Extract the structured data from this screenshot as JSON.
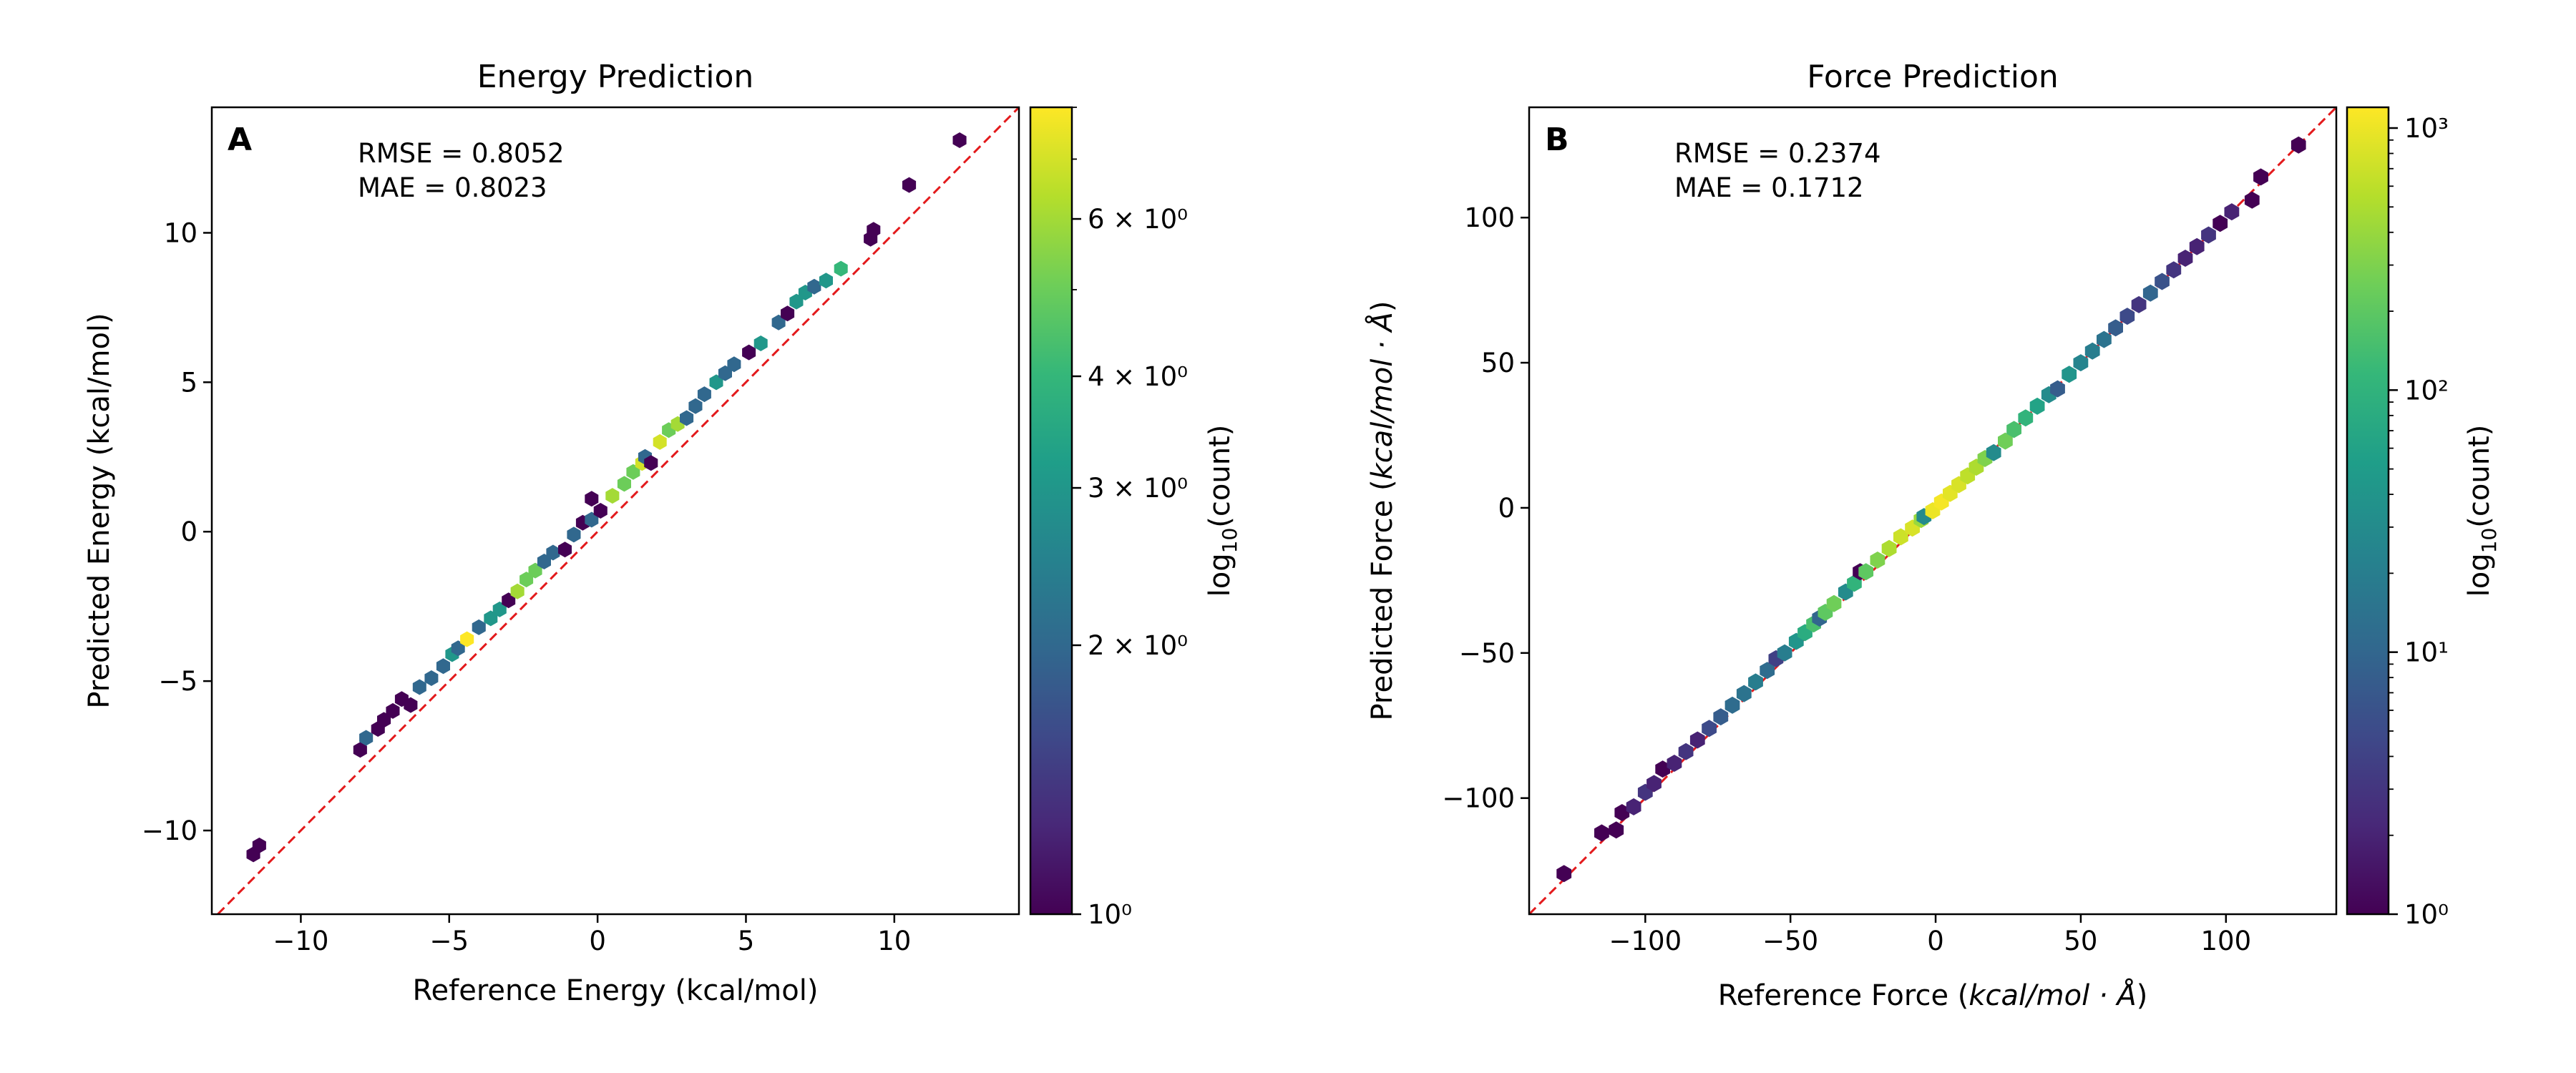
{
  "colors": {
    "diagonal": "#e31a1c",
    "colormap": [
      "#440154",
      "#482878",
      "#3e4989",
      "#31688e",
      "#26828e",
      "#1f9e89",
      "#35b779",
      "#6ece58",
      "#b5de2b",
      "#fde725"
    ]
  },
  "chart_data": [
    {
      "type": "hexbin",
      "panel_label": "A",
      "title": "Energy Prediction",
      "xlabel": "Reference Energy (kcal/mol)",
      "ylabel": "Predicted Energy (kcal/mol)",
      "xlim": [
        -13,
        14.2
      ],
      "ylim": [
        -12.8,
        14.2
      ],
      "xticks": [
        -10,
        -5,
        0,
        5,
        10
      ],
      "yticks": [
        -10,
        -5,
        0,
        5,
        10
      ],
      "xtick_labels": [
        "−10",
        "−5",
        "0",
        "5",
        "10"
      ],
      "ytick_labels": [
        "−10",
        "−5",
        "0",
        "5",
        "10"
      ],
      "annotation": [
        "RMSE = 0.8052",
        "MAE = 0.8023"
      ],
      "colorbar": {
        "label": "log10(count)",
        "scale": "log",
        "range": [
          1,
          8
        ],
        "ticks": [
          1,
          2,
          3,
          4,
          6
        ],
        "tick_labels": [
          "10⁰",
          "2 × 10⁰",
          "3 × 10⁰",
          "4 × 10⁰",
          "6 × 10⁰"
        ]
      },
      "points": [
        [
          -11.6,
          -10.8,
          1
        ],
        [
          -11.4,
          -10.5,
          1
        ],
        [
          -8.0,
          -7.3,
          1
        ],
        [
          -7.8,
          -6.9,
          2
        ],
        [
          -7.4,
          -6.6,
          1
        ],
        [
          -7.2,
          -6.3,
          1
        ],
        [
          -6.9,
          -6.0,
          1
        ],
        [
          -6.6,
          -5.6,
          1
        ],
        [
          -6.3,
          -5.8,
          1
        ],
        [
          -6.0,
          -5.2,
          2
        ],
        [
          -5.6,
          -4.9,
          2
        ],
        [
          -5.2,
          -4.5,
          2
        ],
        [
          -4.9,
          -4.1,
          3
        ],
        [
          -4.7,
          -3.9,
          2
        ],
        [
          -4.4,
          -3.6,
          8
        ],
        [
          -4.0,
          -3.2,
          2
        ],
        [
          -3.6,
          -2.9,
          3
        ],
        [
          -3.3,
          -2.6,
          3
        ],
        [
          -3.0,
          -2.3,
          1
        ],
        [
          -2.7,
          -2.0,
          6
        ],
        [
          -2.4,
          -1.6,
          5
        ],
        [
          -2.1,
          -1.3,
          5
        ],
        [
          -1.8,
          -1.0,
          2
        ],
        [
          -1.5,
          -0.7,
          2
        ],
        [
          -1.1,
          -0.6,
          1
        ],
        [
          -0.8,
          -0.1,
          2
        ],
        [
          -0.5,
          0.3,
          1
        ],
        [
          -0.2,
          0.4,
          2
        ],
        [
          -0.2,
          1.1,
          1
        ],
        [
          0.1,
          0.7,
          1
        ],
        [
          0.5,
          1.2,
          6
        ],
        [
          0.9,
          1.6,
          5
        ],
        [
          1.2,
          2.0,
          5
        ],
        [
          1.5,
          2.3,
          7
        ],
        [
          1.6,
          2.5,
          2
        ],
        [
          1.8,
          2.3,
          1
        ],
        [
          2.1,
          3.0,
          7
        ],
        [
          2.4,
          3.4,
          5
        ],
        [
          2.7,
          3.6,
          6
        ],
        [
          3.0,
          3.8,
          2
        ],
        [
          3.3,
          4.2,
          2
        ],
        [
          3.6,
          4.6,
          2
        ],
        [
          4.0,
          5.0,
          3
        ],
        [
          4.3,
          5.3,
          2
        ],
        [
          4.6,
          5.6,
          2
        ],
        [
          5.1,
          6.0,
          1
        ],
        [
          5.5,
          6.3,
          3
        ],
        [
          6.1,
          7.0,
          2
        ],
        [
          6.4,
          7.3,
          1
        ],
        [
          6.7,
          7.7,
          3
        ],
        [
          7.0,
          8.0,
          3
        ],
        [
          7.3,
          8.2,
          2
        ],
        [
          7.7,
          8.4,
          3
        ],
        [
          8.2,
          8.8,
          4
        ],
        [
          9.2,
          9.8,
          1
        ],
        [
          9.3,
          10.1,
          1
        ],
        [
          10.5,
          11.6,
          1
        ],
        [
          12.2,
          13.1,
          1
        ]
      ]
    },
    {
      "type": "hexbin",
      "panel_label": "B",
      "title": "Force Prediction",
      "xlabel_prefix": "Reference Force (",
      "xlabel_unit": "kcal/mol · Å",
      "xlabel_suffix": ")",
      "ylabel_prefix": "Predicted Force (",
      "ylabel_unit": "kcal/mol · Å",
      "ylabel_suffix": ")",
      "xlim": [
        -140,
        138
      ],
      "ylim": [
        -140,
        138
      ],
      "xticks": [
        -100,
        -50,
        0,
        50,
        100
      ],
      "yticks": [
        -100,
        -50,
        0,
        50,
        100
      ],
      "xtick_labels": [
        "−100",
        "−50",
        "0",
        "50",
        "100"
      ],
      "ytick_labels": [
        "−100",
        "−50",
        "0",
        "50",
        "100"
      ],
      "annotation": [
        "RMSE = 0.2374",
        "MAE = 0.1712"
      ],
      "colorbar": {
        "label": "log10(count)",
        "scale": "log",
        "range": [
          1,
          1200
        ],
        "ticks": [
          1,
          10,
          100,
          1000
        ],
        "tick_labels": [
          "10⁰",
          "10¹",
          "10²",
          "10³"
        ]
      },
      "points": [
        [
          -128,
          -126,
          1
        ],
        [
          -115,
          -112,
          1
        ],
        [
          -110,
          -111,
          1
        ],
        [
          -108,
          -105,
          1
        ],
        [
          -104,
          -103,
          2
        ],
        [
          -100,
          -98,
          3
        ],
        [
          -97,
          -95,
          2
        ],
        [
          -94,
          -90,
          1
        ],
        [
          -90,
          -88,
          2
        ],
        [
          -86,
          -84,
          3
        ],
        [
          -82,
          -80,
          2
        ],
        [
          -78,
          -76,
          5
        ],
        [
          -74,
          -72,
          8
        ],
        [
          -70,
          -68,
          12
        ],
        [
          -66,
          -64,
          15
        ],
        [
          -62,
          -60,
          20
        ],
        [
          -58,
          -56,
          12
        ],
        [
          -55,
          -52,
          4
        ],
        [
          -52,
          -50,
          20
        ],
        [
          -48,
          -46,
          40
        ],
        [
          -45,
          -43,
          80
        ],
        [
          -42,
          -40,
          150
        ],
        [
          -40,
          -38,
          10
        ],
        [
          -38,
          -36,
          200
        ],
        [
          -35,
          -33,
          250
        ],
        [
          -31,
          -29,
          30
        ],
        [
          -28,
          -26,
          100
        ],
        [
          -26,
          -22,
          1
        ],
        [
          -24,
          -22,
          200
        ],
        [
          -20,
          -18,
          300
        ],
        [
          -16,
          -14,
          500
        ],
        [
          -12,
          -10,
          700
        ],
        [
          -8,
          -7,
          800
        ],
        [
          -5,
          -4,
          400
        ],
        [
          -4,
          -3,
          30
        ],
        [
          -1,
          -1,
          1000
        ],
        [
          2,
          2,
          1100
        ],
        [
          5,
          5,
          900
        ],
        [
          8,
          8,
          800
        ],
        [
          11,
          11,
          600
        ],
        [
          14,
          14,
          500
        ],
        [
          17,
          17,
          300
        ],
        [
          20,
          19,
          30
        ],
        [
          24,
          23,
          250
        ],
        [
          27,
          27,
          150
        ],
        [
          31,
          31,
          100
        ],
        [
          35,
          35,
          60
        ],
        [
          39,
          39,
          30
        ],
        [
          42,
          41,
          8
        ],
        [
          46,
          46,
          40
        ],
        [
          50,
          50,
          25
        ],
        [
          54,
          54,
          20
        ],
        [
          58,
          58,
          15
        ],
        [
          62,
          62,
          8
        ],
        [
          66,
          66,
          5
        ],
        [
          70,
          70,
          3
        ],
        [
          74,
          74,
          10
        ],
        [
          78,
          78,
          6
        ],
        [
          82,
          82,
          3
        ],
        [
          86,
          86,
          2
        ],
        [
          90,
          90,
          2
        ],
        [
          94,
          94,
          3
        ],
        [
          98,
          98,
          1
        ],
        [
          102,
          102,
          2
        ],
        [
          109,
          106,
          1
        ],
        [
          112,
          114,
          1
        ],
        [
          125,
          125,
          1
        ]
      ]
    }
  ]
}
